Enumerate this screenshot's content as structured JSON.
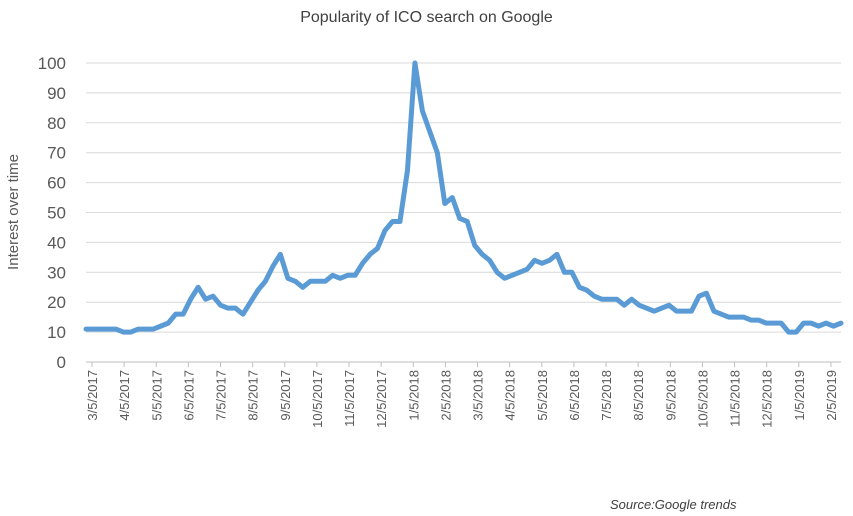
{
  "chart_data": {
    "type": "line",
    "title": "Popularity of ICO search on Google",
    "xlabel": "",
    "ylabel": "Interest over time",
    "ylim": [
      0,
      100
    ],
    "yticks": [
      "0",
      "10",
      "20",
      "30",
      "40",
      "50",
      "60",
      "70",
      "80",
      "90",
      "100"
    ],
    "xticks": [
      "3/5/2017",
      "4/5/2017",
      "5/5/2017",
      "6/5/2017",
      "7/5/2017",
      "8/5/2017",
      "9/5/2017",
      "10/5/2017",
      "11/5/2017",
      "12/5/2017",
      "1/5/2018",
      "2/5/2018",
      "3/5/2018",
      "4/5/2018",
      "5/5/2018",
      "6/5/2018",
      "7/5/2018",
      "8/5/2018",
      "9/5/2018",
      "10/5/2018",
      "11/5/2018",
      "12/5/2018",
      "1/5/2019",
      "2/5/2019"
    ],
    "grid": true,
    "legend": "none",
    "color": "#5B9BD5",
    "series": [
      {
        "values": [
          11,
          11,
          11,
          11,
          11,
          10,
          10,
          11,
          11,
          11,
          12,
          13,
          16,
          16,
          21,
          25,
          21,
          22,
          19,
          18,
          18,
          16,
          20,
          24,
          27,
          32,
          36,
          28,
          27,
          25,
          27,
          27,
          27,
          29,
          28,
          29,
          29,
          33,
          36,
          38,
          44,
          47,
          47,
          64,
          100,
          84,
          77,
          70,
          53,
          55,
          48,
          47,
          39,
          36,
          34,
          30,
          28,
          29,
          30,
          31,
          34,
          33,
          34,
          36,
          30,
          30,
          25,
          24,
          22,
          21,
          21,
          21,
          19,
          21,
          19,
          18,
          17,
          18,
          19,
          17,
          17,
          17,
          22,
          23,
          17,
          16,
          15,
          15,
          15,
          14,
          14,
          13,
          13,
          13,
          10,
          10,
          13,
          13,
          12,
          13,
          12,
          13
        ]
      }
    ],
    "note": "Source:Google trends"
  }
}
